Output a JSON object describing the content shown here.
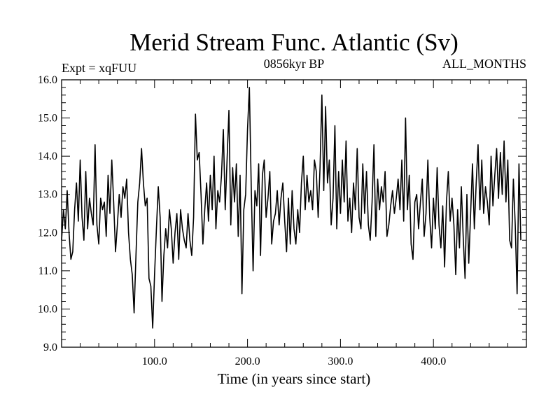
{
  "chart_data": {
    "type": "line",
    "title": "Merid Stream Func. Atlantic (Sv)",
    "subtitle_left": "Expt = xqFUU",
    "subtitle_center": "0856kyr BP",
    "subtitle_right": "ALL_MONTHS",
    "xlabel": "Time (in years since start)",
    "ylabel": "",
    "xlim": [
      0,
      500
    ],
    "ylim": [
      9.0,
      16.0
    ],
    "x_ticks": [
      100,
      200,
      300,
      400
    ],
    "x_tick_labels": [
      "100.0",
      "200.0",
      "300.0",
      "400.0"
    ],
    "y_ticks": [
      9,
      10,
      11,
      12,
      13,
      14,
      15,
      16
    ],
    "y_tick_labels": [
      "9.0",
      "10.0",
      "11.0",
      "12.0",
      "13.0",
      "14.0",
      "15.0",
      "16.0"
    ],
    "grid": false,
    "series": [
      {
        "name": "Merid Stream Func. Atlantic",
        "x_start": 0,
        "x_step": 2,
        "values": [
          11.8,
          12.6,
          12.1,
          13.1,
          12.0,
          11.3,
          11.5,
          12.6,
          13.3,
          12.3,
          13.9,
          12.4,
          11.8,
          13.6,
          12.1,
          12.9,
          12.5,
          12.2,
          14.3,
          12.2,
          11.7,
          12.9,
          12.6,
          12.8,
          11.9,
          13.5,
          12.5,
          13.9,
          12.8,
          11.5,
          12.2,
          13.0,
          12.4,
          13.2,
          12.9,
          13.4,
          12.0,
          11.3,
          10.9,
          9.9,
          11.4,
          12.8,
          13.3,
          14.2,
          13.3,
          12.7,
          12.9,
          10.8,
          10.6,
          9.5,
          10.9,
          12.1,
          13.2,
          12.4,
          10.2,
          11.4,
          12.1,
          11.6,
          12.6,
          12.1,
          11.2,
          12.0,
          12.5,
          11.3,
          12.6,
          12.1,
          11.8,
          11.6,
          12.5,
          11.8,
          11.4,
          12.4,
          15.1,
          13.9,
          14.1,
          13.0,
          11.7,
          12.6,
          13.3,
          12.3,
          13.5,
          12.6,
          14.0,
          12.1,
          13.1,
          12.8,
          13.5,
          14.7,
          12.6,
          13.9,
          15.2,
          12.2,
          13.7,
          12.8,
          13.8,
          11.9,
          13.5,
          10.4,
          12.6,
          13.0,
          14.7,
          15.8,
          13.2,
          11.0,
          13.1,
          12.7,
          13.8,
          11.4,
          13.5,
          13.9,
          12.4,
          12.9,
          13.6,
          11.7,
          12.3,
          12.5,
          13.1,
          12.2,
          12.9,
          13.3,
          12.3,
          11.5,
          12.9,
          11.7,
          13.1,
          12.1,
          11.7,
          12.6,
          12.0,
          13.3,
          14.0,
          12.6,
          13.5,
          12.8,
          13.1,
          12.6,
          13.9,
          13.6,
          12.4,
          13.7,
          15.6,
          13.1,
          15.3,
          13.3,
          13.9,
          12.2,
          12.9,
          14.8,
          12.1,
          13.6,
          12.5,
          13.9,
          12.8,
          14.4,
          12.3,
          12.9,
          12.0,
          13.3,
          12.6,
          14.2,
          12.4,
          12.1,
          13.8,
          12.5,
          13.6,
          12.2,
          11.8,
          12.8,
          14.3,
          11.9,
          13.4,
          12.6,
          13.2,
          12.8,
          13.6,
          11.9,
          12.2,
          12.7,
          13.1,
          12.5,
          12.9,
          13.4,
          12.6,
          13.9,
          12.3,
          15.0,
          12.6,
          13.5,
          11.7,
          11.3,
          12.8,
          13.0,
          12.1,
          12.8,
          13.4,
          11.9,
          12.5,
          13.9,
          12.4,
          11.6,
          12.9,
          12.1,
          13.7,
          12.2,
          11.6,
          12.7,
          11.1,
          12.8,
          13.6,
          12.3,
          12.9,
          12.2,
          10.9,
          12.6,
          11.6,
          13.2,
          11.9,
          10.8,
          13.0,
          11.2,
          12.5,
          13.8,
          12.1,
          13.3,
          14.3,
          12.6,
          13.9,
          12.5,
          13.2,
          12.8,
          12.2,
          14.0,
          12.7,
          13.5,
          14.2,
          12.9,
          14.1,
          13.0,
          14.4,
          12.8,
          13.9,
          11.8,
          11.6,
          13.4,
          12.2,
          10.4,
          13.8,
          11.8
        ]
      }
    ]
  }
}
